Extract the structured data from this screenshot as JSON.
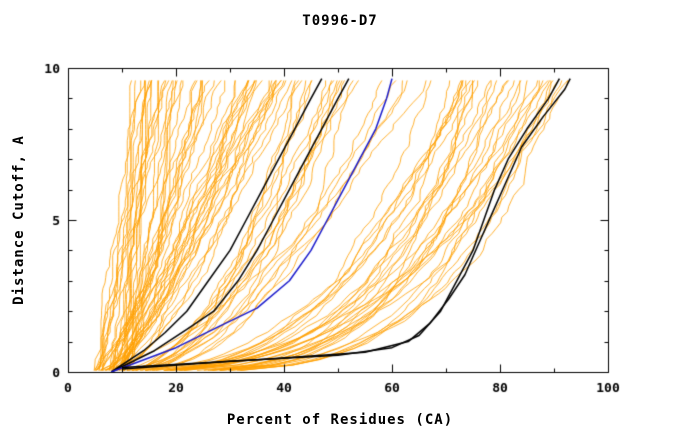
{
  "chart_data": {
    "type": "line",
    "title": "T0996-D7",
    "xlabel": "Percent of Residues (CA)",
    "ylabel": "Distance Cutoff, A",
    "xlim": [
      0,
      100
    ],
    "ylim": [
      0,
      10
    ],
    "xticks_major": [
      0,
      20,
      40,
      60,
      80,
      100
    ],
    "xticks_minor": [
      10,
      30,
      50,
      70,
      90
    ],
    "yticks_major": [
      0,
      5,
      10
    ],
    "yticks_minor": [
      1,
      2,
      3,
      4,
      6,
      7,
      8,
      9
    ],
    "grid": "off",
    "legend": "none",
    "colors": {
      "ensemble": "#ffa000",
      "highlight": "#000000",
      "reference": "#1a1acc"
    },
    "highlight_series": [
      {
        "name": "black-model-left-1",
        "color": "#000000",
        "points": [
          [
            8,
            0
          ],
          [
            14,
            0.7
          ],
          [
            18,
            1.3
          ],
          [
            22,
            2
          ],
          [
            26,
            3
          ],
          [
            30,
            4
          ],
          [
            33,
            5
          ],
          [
            36,
            6
          ],
          [
            39,
            7
          ],
          [
            42,
            8
          ],
          [
            45,
            9
          ],
          [
            47,
            9.65
          ]
        ]
      },
      {
        "name": "black-model-left-2",
        "color": "#000000",
        "points": [
          [
            8,
            0
          ],
          [
            16,
            0.7
          ],
          [
            22,
            1.4
          ],
          [
            27,
            2
          ],
          [
            31.5,
            3
          ],
          [
            35,
            4
          ],
          [
            38,
            5
          ],
          [
            41,
            6
          ],
          [
            44,
            7
          ],
          [
            47,
            8
          ],
          [
            50,
            9
          ],
          [
            52,
            9.65
          ]
        ]
      },
      {
        "name": "blue-reference-model",
        "color": "#1a1acc",
        "points": [
          [
            8,
            0
          ],
          [
            20,
            0.8
          ],
          [
            28,
            1.5
          ],
          [
            35,
            2.1
          ],
          [
            41,
            3
          ],
          [
            45,
            4
          ],
          [
            48,
            5
          ],
          [
            51,
            6
          ],
          [
            54,
            7
          ],
          [
            57,
            8
          ],
          [
            59,
            9
          ],
          [
            60,
            9.65
          ]
        ]
      },
      {
        "name": "black-model-right-1",
        "color": "#000000",
        "points": [
          [
            10,
            0.1
          ],
          [
            30,
            0.35
          ],
          [
            50,
            0.55
          ],
          [
            60,
            0.8
          ],
          [
            65,
            1.2
          ],
          [
            69,
            2
          ],
          [
            72,
            3
          ],
          [
            75,
            4
          ],
          [
            77,
            5
          ],
          [
            79,
            6
          ],
          [
            81.5,
            7
          ],
          [
            85,
            8
          ],
          [
            89,
            9
          ],
          [
            91,
            9.65
          ]
        ]
      },
      {
        "name": "black-model-right-2",
        "color": "#000000",
        "points": [
          [
            10,
            0.15
          ],
          [
            35,
            0.4
          ],
          [
            55,
            0.65
          ],
          [
            63,
            1.0
          ],
          [
            67,
            1.6
          ],
          [
            70.5,
            2.4
          ],
          [
            73.5,
            3.2
          ],
          [
            76,
            4.2
          ],
          [
            78.5,
            5.2
          ],
          [
            81,
            6.2
          ],
          [
            84,
            7.4
          ],
          [
            88,
            8.4
          ],
          [
            92,
            9.3
          ],
          [
            93,
            9.65
          ]
        ]
      }
    ],
    "ensemble": {
      "count": 105,
      "seed": 11,
      "y_top": 9.65,
      "x_start_range": [
        4,
        11
      ],
      "groups": [
        {
          "weight": 0.45,
          "xend": [
            12,
            42
          ],
          "c": [
            0.55,
            1.1
          ]
        },
        {
          "weight": 0.2,
          "xend": [
            42,
            70
          ],
          "c": [
            0.35,
            0.6
          ]
        },
        {
          "weight": 0.35,
          "xend": [
            70,
            96
          ],
          "c": [
            0.18,
            0.4
          ]
        }
      ],
      "noise": 1.0
    }
  }
}
